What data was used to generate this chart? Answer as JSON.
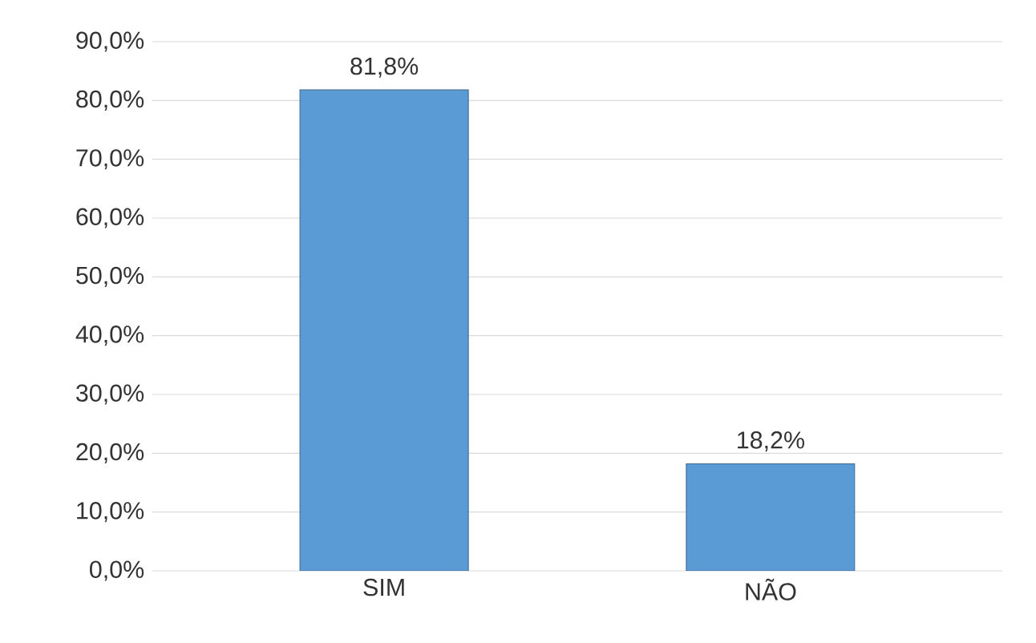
{
  "chart_data": {
    "type": "bar",
    "categories": [
      "SIM",
      "NÃO"
    ],
    "values": [
      81.8,
      18.2
    ],
    "color": "#5b9bd5",
    "value_labels": [
      "81,8%",
      "18,2%"
    ],
    "ylim": [
      0,
      90
    ],
    "yticks": [
      {
        "value": 0,
        "label": "0,0%"
      },
      {
        "value": 10,
        "label": "10,0%"
      },
      {
        "value": 20,
        "label": "20,0%"
      },
      {
        "value": 30,
        "label": "30,0%"
      },
      {
        "value": 40,
        "label": "40,0%"
      },
      {
        "value": 50,
        "label": "50,0%"
      },
      {
        "value": 60,
        "label": "60,0%"
      },
      {
        "value": 70,
        "label": "70,0%"
      },
      {
        "value": 80,
        "label": "80,0%"
      },
      {
        "value": 90,
        "label": "90,0%"
      }
    ],
    "grid": "y"
  }
}
